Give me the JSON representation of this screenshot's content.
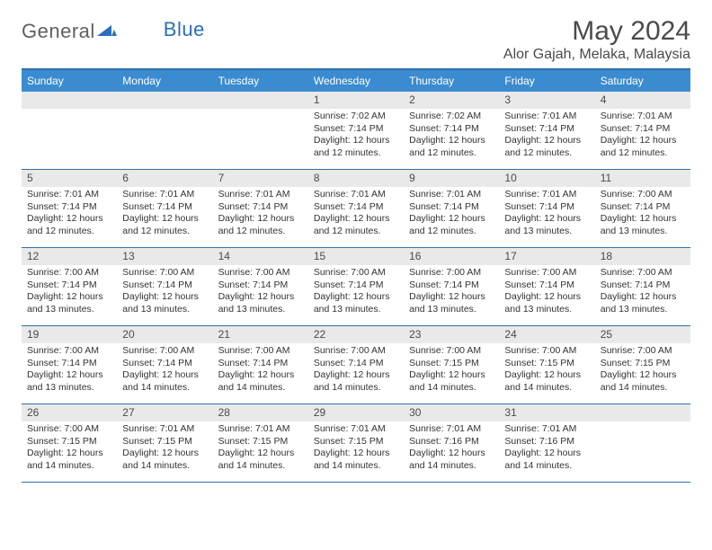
{
  "brand": {
    "name_a": "General",
    "name_b": "Blue"
  },
  "title": "May 2024",
  "location": "Alor Gajah, Melaka, Malaysia",
  "colors": {
    "header_bg": "#3b8bd0",
    "header_border": "#2f6fae",
    "daynum_bg": "#e9e9e9",
    "text": "#333333",
    "title_text": "#4a4a4a",
    "logo_gray": "#5f5f5f",
    "logo_blue": "#2a6fb5",
    "page_bg": "#ffffff"
  },
  "typography": {
    "title_fontsize": 30,
    "location_fontsize": 16,
    "dow_fontsize": 12,
    "daynum_fontsize": 12,
    "body_fontsize": 10.5,
    "logo_fontsize": 22
  },
  "day_labels": [
    "Sunday",
    "Monday",
    "Tuesday",
    "Wednesday",
    "Thursday",
    "Friday",
    "Saturday"
  ],
  "weeks": [
    [
      {
        "num": "",
        "lines": []
      },
      {
        "num": "",
        "lines": []
      },
      {
        "num": "",
        "lines": []
      },
      {
        "num": "1",
        "lines": [
          "Sunrise: 7:02 AM",
          "Sunset: 7:14 PM",
          "Daylight: 12 hours and 12 minutes."
        ]
      },
      {
        "num": "2",
        "lines": [
          "Sunrise: 7:02 AM",
          "Sunset: 7:14 PM",
          "Daylight: 12 hours and 12 minutes."
        ]
      },
      {
        "num": "3",
        "lines": [
          "Sunrise: 7:01 AM",
          "Sunset: 7:14 PM",
          "Daylight: 12 hours and 12 minutes."
        ]
      },
      {
        "num": "4",
        "lines": [
          "Sunrise: 7:01 AM",
          "Sunset: 7:14 PM",
          "Daylight: 12 hours and 12 minutes."
        ]
      }
    ],
    [
      {
        "num": "5",
        "lines": [
          "Sunrise: 7:01 AM",
          "Sunset: 7:14 PM",
          "Daylight: 12 hours and 12 minutes."
        ]
      },
      {
        "num": "6",
        "lines": [
          "Sunrise: 7:01 AM",
          "Sunset: 7:14 PM",
          "Daylight: 12 hours and 12 minutes."
        ]
      },
      {
        "num": "7",
        "lines": [
          "Sunrise: 7:01 AM",
          "Sunset: 7:14 PM",
          "Daylight: 12 hours and 12 minutes."
        ]
      },
      {
        "num": "8",
        "lines": [
          "Sunrise: 7:01 AM",
          "Sunset: 7:14 PM",
          "Daylight: 12 hours and 12 minutes."
        ]
      },
      {
        "num": "9",
        "lines": [
          "Sunrise: 7:01 AM",
          "Sunset: 7:14 PM",
          "Daylight: 12 hours and 12 minutes."
        ]
      },
      {
        "num": "10",
        "lines": [
          "Sunrise: 7:01 AM",
          "Sunset: 7:14 PM",
          "Daylight: 12 hours and 13 minutes."
        ]
      },
      {
        "num": "11",
        "lines": [
          "Sunrise: 7:00 AM",
          "Sunset: 7:14 PM",
          "Daylight: 12 hours and 13 minutes."
        ]
      }
    ],
    [
      {
        "num": "12",
        "lines": [
          "Sunrise: 7:00 AM",
          "Sunset: 7:14 PM",
          "Daylight: 12 hours and 13 minutes."
        ]
      },
      {
        "num": "13",
        "lines": [
          "Sunrise: 7:00 AM",
          "Sunset: 7:14 PM",
          "Daylight: 12 hours and 13 minutes."
        ]
      },
      {
        "num": "14",
        "lines": [
          "Sunrise: 7:00 AM",
          "Sunset: 7:14 PM",
          "Daylight: 12 hours and 13 minutes."
        ]
      },
      {
        "num": "15",
        "lines": [
          "Sunrise: 7:00 AM",
          "Sunset: 7:14 PM",
          "Daylight: 12 hours and 13 minutes."
        ]
      },
      {
        "num": "16",
        "lines": [
          "Sunrise: 7:00 AM",
          "Sunset: 7:14 PM",
          "Daylight: 12 hours and 13 minutes."
        ]
      },
      {
        "num": "17",
        "lines": [
          "Sunrise: 7:00 AM",
          "Sunset: 7:14 PM",
          "Daylight: 12 hours and 13 minutes."
        ]
      },
      {
        "num": "18",
        "lines": [
          "Sunrise: 7:00 AM",
          "Sunset: 7:14 PM",
          "Daylight: 12 hours and 13 minutes."
        ]
      }
    ],
    [
      {
        "num": "19",
        "lines": [
          "Sunrise: 7:00 AM",
          "Sunset: 7:14 PM",
          "Daylight: 12 hours and 13 minutes."
        ]
      },
      {
        "num": "20",
        "lines": [
          "Sunrise: 7:00 AM",
          "Sunset: 7:14 PM",
          "Daylight: 12 hours and 14 minutes."
        ]
      },
      {
        "num": "21",
        "lines": [
          "Sunrise: 7:00 AM",
          "Sunset: 7:14 PM",
          "Daylight: 12 hours and 14 minutes."
        ]
      },
      {
        "num": "22",
        "lines": [
          "Sunrise: 7:00 AM",
          "Sunset: 7:14 PM",
          "Daylight: 12 hours and 14 minutes."
        ]
      },
      {
        "num": "23",
        "lines": [
          "Sunrise: 7:00 AM",
          "Sunset: 7:15 PM",
          "Daylight: 12 hours and 14 minutes."
        ]
      },
      {
        "num": "24",
        "lines": [
          "Sunrise: 7:00 AM",
          "Sunset: 7:15 PM",
          "Daylight: 12 hours and 14 minutes."
        ]
      },
      {
        "num": "25",
        "lines": [
          "Sunrise: 7:00 AM",
          "Sunset: 7:15 PM",
          "Daylight: 12 hours and 14 minutes."
        ]
      }
    ],
    [
      {
        "num": "26",
        "lines": [
          "Sunrise: 7:00 AM",
          "Sunset: 7:15 PM",
          "Daylight: 12 hours and 14 minutes."
        ]
      },
      {
        "num": "27",
        "lines": [
          "Sunrise: 7:01 AM",
          "Sunset: 7:15 PM",
          "Daylight: 12 hours and 14 minutes."
        ]
      },
      {
        "num": "28",
        "lines": [
          "Sunrise: 7:01 AM",
          "Sunset: 7:15 PM",
          "Daylight: 12 hours and 14 minutes."
        ]
      },
      {
        "num": "29",
        "lines": [
          "Sunrise: 7:01 AM",
          "Sunset: 7:15 PM",
          "Daylight: 12 hours and 14 minutes."
        ]
      },
      {
        "num": "30",
        "lines": [
          "Sunrise: 7:01 AM",
          "Sunset: 7:16 PM",
          "Daylight: 12 hours and 14 minutes."
        ]
      },
      {
        "num": "31",
        "lines": [
          "Sunrise: 7:01 AM",
          "Sunset: 7:16 PM",
          "Daylight: 12 hours and 14 minutes."
        ]
      },
      {
        "num": "",
        "lines": []
      }
    ]
  ]
}
